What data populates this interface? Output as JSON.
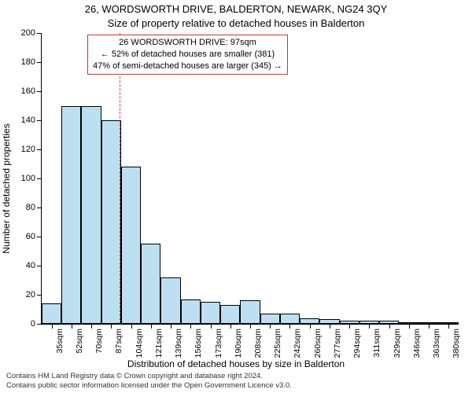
{
  "title_line1": "26, WORDSWORTH DRIVE, BALDERTON, NEWARK, NG24 3QY",
  "title_line2": "Size of property relative to detached houses in Balderton",
  "y_axis_label": "Number of detached properties",
  "x_axis_label": "Distribution of detached houses by size in Balderton",
  "attribution_line1": "Contains HM Land Registry data © Crown copyright and database right 2024.",
  "attribution_line2": "Contains public sector information licensed under the Open Government Licence v3.0.",
  "chart": {
    "type": "histogram",
    "background_color": "#ffffff",
    "axis_color": "#000000",
    "bar_fill": "#bddff2",
    "bar_border": "#000000",
    "marker_line_color": "#cc3333",
    "marker_x_value": 97,
    "info_box": {
      "border_color": "#cc3333",
      "line1": "26 WORDSWORTH DRIVE: 97sqm",
      "line2": "← 52% of detached houses are smaller (381)",
      "line3": "47% of semi-detached houses are larger (345) →"
    },
    "y": {
      "min": 0,
      "max": 200,
      "tick_step": 20,
      "ticks": [
        0,
        20,
        40,
        60,
        80,
        100,
        120,
        140,
        160,
        180,
        200
      ],
      "tick_fontsize": 11
    },
    "x": {
      "min": 30,
      "max": 390,
      "bin_width": 17.3,
      "tick_labels": [
        "35sqm",
        "52sqm",
        "70sqm",
        "87sqm",
        "104sqm",
        "121sqm",
        "139sqm",
        "156sqm",
        "173sqm",
        "190sqm",
        "208sqm",
        "225sqm",
        "242sqm",
        "260sqm",
        "277sqm",
        "294sqm",
        "311sqm",
        "329sqm",
        "346sqm",
        "363sqm",
        "380sqm"
      ],
      "tick_fontsize": 10.5,
      "tick_rotation": -90
    },
    "bars": {
      "values": [
        14,
        150,
        150,
        140,
        108,
        55,
        32,
        17,
        15,
        13,
        16,
        7,
        7,
        4,
        3,
        2,
        2,
        2,
        1,
        1,
        1
      ]
    },
    "title_fontsize": 13,
    "label_fontsize": 12
  }
}
